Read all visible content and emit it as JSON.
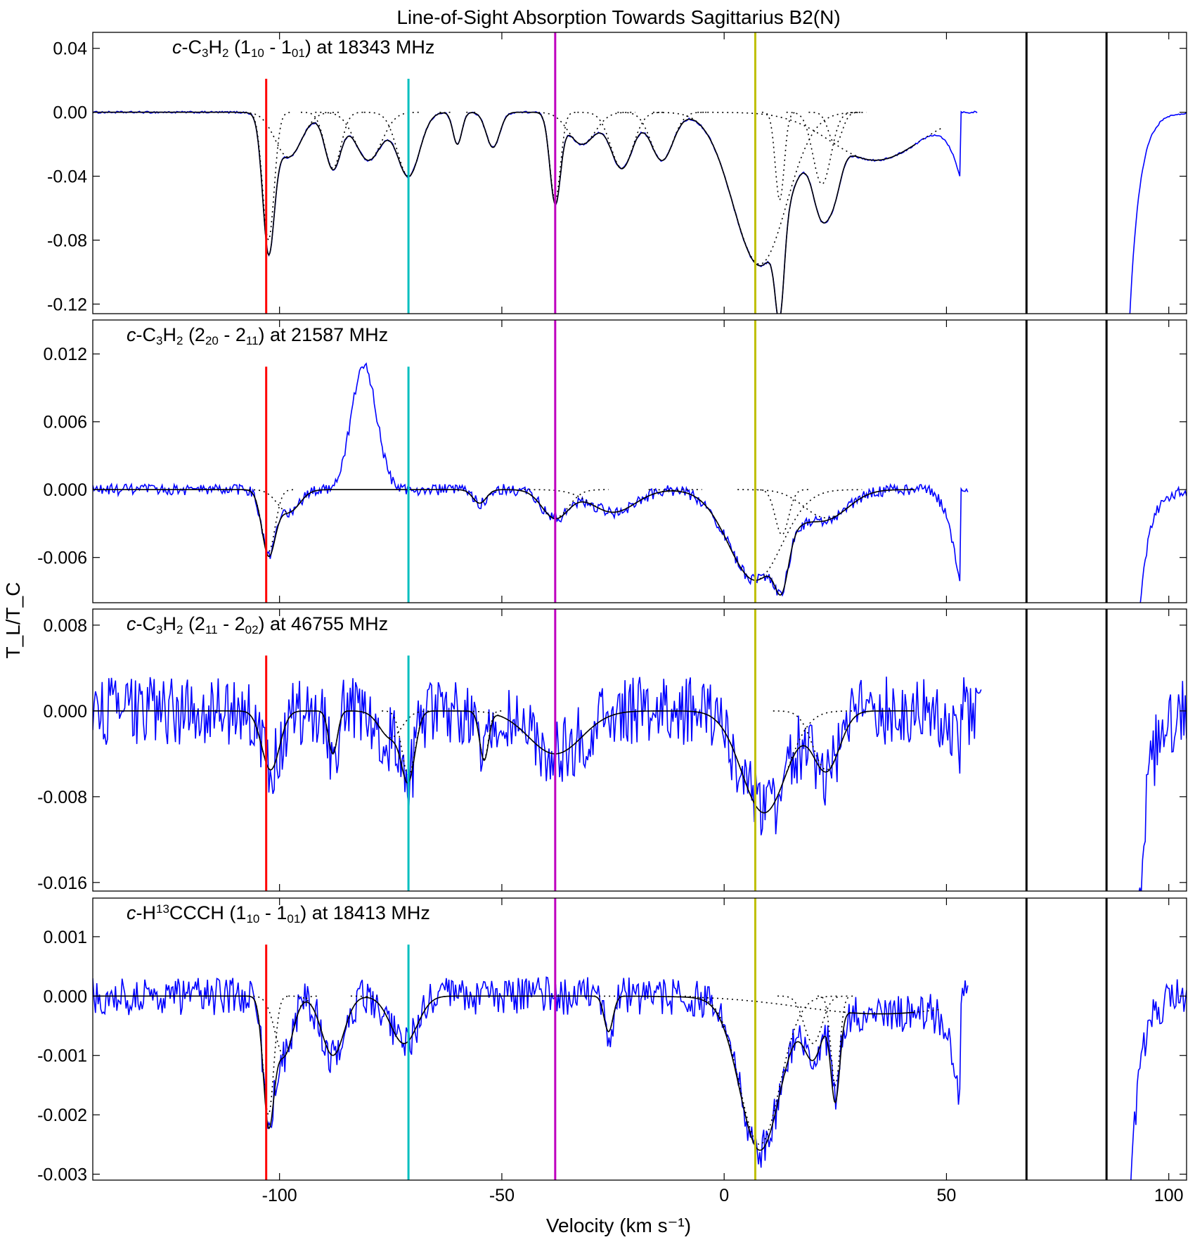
{
  "figure": {
    "title": "Line-of-Sight Absorption Towards Sagittarius B2(N)",
    "xlabel": "Velocity (km s⁻¹)",
    "ylabel": "T_L/T_C"
  },
  "colors": {
    "observed": "#0000ff",
    "fit": "#000000",
    "marker_red": "#ff0000",
    "marker_cyan": "#00bfbf",
    "marker_magenta": "#bf00bf",
    "marker_olive": "#bfbf00",
    "blank_band": "#000000"
  },
  "chart_data": {
    "type": "line",
    "xlim": [
      -142,
      104
    ],
    "x_ticks": [
      -100,
      -50,
      0,
      50,
      100
    ],
    "x_tick_labels": [
      "-100",
      "-50",
      "0",
      "50",
      "100"
    ],
    "velocity_markers": [
      {
        "velocity": -103,
        "color": "#ff0000"
      },
      {
        "velocity": -71,
        "color": "#00bfbf"
      },
      {
        "velocity": -38,
        "color": "#bf00bf"
      },
      {
        "velocity": 7,
        "color": "#bfbf00"
      }
    ],
    "blanked_range": [
      68,
      86
    ],
    "series": [
      "observed spectrum",
      "model fit",
      "fit components"
    ],
    "panels": [
      {
        "label": "c-C3H2 (1_10 - 1_01) at 18343 MHz",
        "ylim": [
          -0.126,
          0.05
        ],
        "y_ticks": [
          0.04,
          0.0,
          -0.04,
          -0.08,
          -0.12
        ],
        "y_tick_labels": [
          "0.04",
          "0.00",
          "-0.04",
          "-0.08",
          "-0.12"
        ],
        "components": [
          {
            "v": -102.5,
            "depth": -0.08,
            "w": 1.3
          },
          {
            "v": -98,
            "depth": -0.028,
            "w": 3.0
          },
          {
            "v": -88,
            "depth": -0.035,
            "w": 1.8
          },
          {
            "v": -80,
            "depth": -0.03,
            "w": 3.0
          },
          {
            "v": -71,
            "depth": -0.04,
            "w": 2.5
          },
          {
            "v": -60,
            "depth": -0.02,
            "w": 1.0
          },
          {
            "v": -52,
            "depth": -0.022,
            "w": 1.5
          },
          {
            "v": -38,
            "depth": -0.055,
            "w": 1.2
          },
          {
            "v": -32,
            "depth": -0.02,
            "w": 3.0
          },
          {
            "v": -23,
            "depth": -0.035,
            "w": 2.5
          },
          {
            "v": -14,
            "depth": -0.03,
            "w": 2.5
          },
          {
            "v": 8,
            "depth": -0.095,
            "w": 6.0
          },
          {
            "v": 12.5,
            "depth": -0.055,
            "w": 1.0
          },
          {
            "v": 22,
            "depth": -0.045,
            "w": 2.0
          },
          {
            "v": 25,
            "depth": -0.02,
            "w": 1.5
          },
          {
            "v": 34,
            "depth": -0.03,
            "w": 10.0
          }
        ],
        "observed_tail": {
          "edge_velocity": 57,
          "recovery_velocity": 91
        }
      },
      {
        "label": "c-C3H2 (2_20 - 2_11) at 21587 MHz",
        "ylim": [
          -0.01,
          0.015
        ],
        "y_ticks": [
          0.012,
          0.006,
          0.0,
          -0.006
        ],
        "y_tick_labels": [
          "0.012",
          "0.006",
          "0.000",
          "-0.006"
        ],
        "components": [
          {
            "v": -102.5,
            "depth": -0.0055,
            "w": 1.5
          },
          {
            "v": -98,
            "depth": -0.002,
            "w": 2.5
          },
          {
            "v": -55,
            "depth": -0.0012,
            "w": 1.5
          },
          {
            "v": -38,
            "depth": -0.0025,
            "w": 3.0
          },
          {
            "v": -25,
            "depth": -0.002,
            "w": 5.0
          },
          {
            "v": 7,
            "depth": -0.008,
            "w": 6.0
          },
          {
            "v": 13,
            "depth": -0.004,
            "w": 1.5
          },
          {
            "v": 23,
            "depth": -0.0025,
            "w": 5.0
          }
        ],
        "emission_feature": {
          "v": -81,
          "height": 0.011,
          "w": 2.8
        },
        "observed_tail": {
          "edge_velocity": 55,
          "recovery_velocity": 92
        }
      },
      {
        "label": "c-C3H2 (2_11 - 2_02) at 46755 MHz",
        "ylim": [
          -0.0168,
          0.0095
        ],
        "y_ticks": [
          0.008,
          0.0,
          -0.008,
          -0.016
        ],
        "y_tick_labels": [
          "0.008",
          "0.000",
          "-0.008",
          "-0.016"
        ],
        "components": [
          {
            "v": -102,
            "depth": -0.0055,
            "w": 2.0
          },
          {
            "v": -88,
            "depth": -0.004,
            "w": 1.0
          },
          {
            "v": -75,
            "depth": -0.0025,
            "w": 2.5
          },
          {
            "v": -71,
            "depth": -0.006,
            "w": 1.5
          },
          {
            "v": -54,
            "depth": -0.0045,
            "w": 1.0
          },
          {
            "v": -38,
            "depth": -0.004,
            "w": 6.0
          },
          {
            "v": 9,
            "depth": -0.0095,
            "w": 5.0
          },
          {
            "v": 23,
            "depth": -0.0055,
            "w": 3.0
          }
        ],
        "observed_tail": {
          "edge_velocity": 58,
          "recovery_velocity": 93
        }
      },
      {
        "label": "c-H13CCCH (1_10 - 1_01) at 18413 MHz",
        "ylim": [
          -0.0031,
          0.00165
        ],
        "y_ticks": [
          0.001,
          0.0,
          -0.001,
          -0.002,
          -0.003
        ],
        "y_tick_labels": [
          "0.001",
          "0.000",
          "-0.001",
          "-0.002",
          "-0.003"
        ],
        "components": [
          {
            "v": -102.5,
            "depth": -0.002,
            "w": 1.2
          },
          {
            "v": -99,
            "depth": -0.001,
            "w": 2.0
          },
          {
            "v": -88,
            "depth": -0.001,
            "w": 2.5
          },
          {
            "v": -72,
            "depth": -0.0008,
            "w": 3.0
          },
          {
            "v": -26,
            "depth": -0.0006,
            "w": 1.0
          },
          {
            "v": 8,
            "depth": -0.0025,
            "w": 4.5
          },
          {
            "v": 20,
            "depth": -0.0008,
            "w": 2.0
          },
          {
            "v": 25,
            "depth": -0.0015,
            "w": 1.0
          },
          {
            "v": 35,
            "depth": -0.0003,
            "w": 18.0
          }
        ],
        "observed_tail": {
          "edge_velocity": 55,
          "recovery_velocity": 91
        }
      }
    ]
  }
}
